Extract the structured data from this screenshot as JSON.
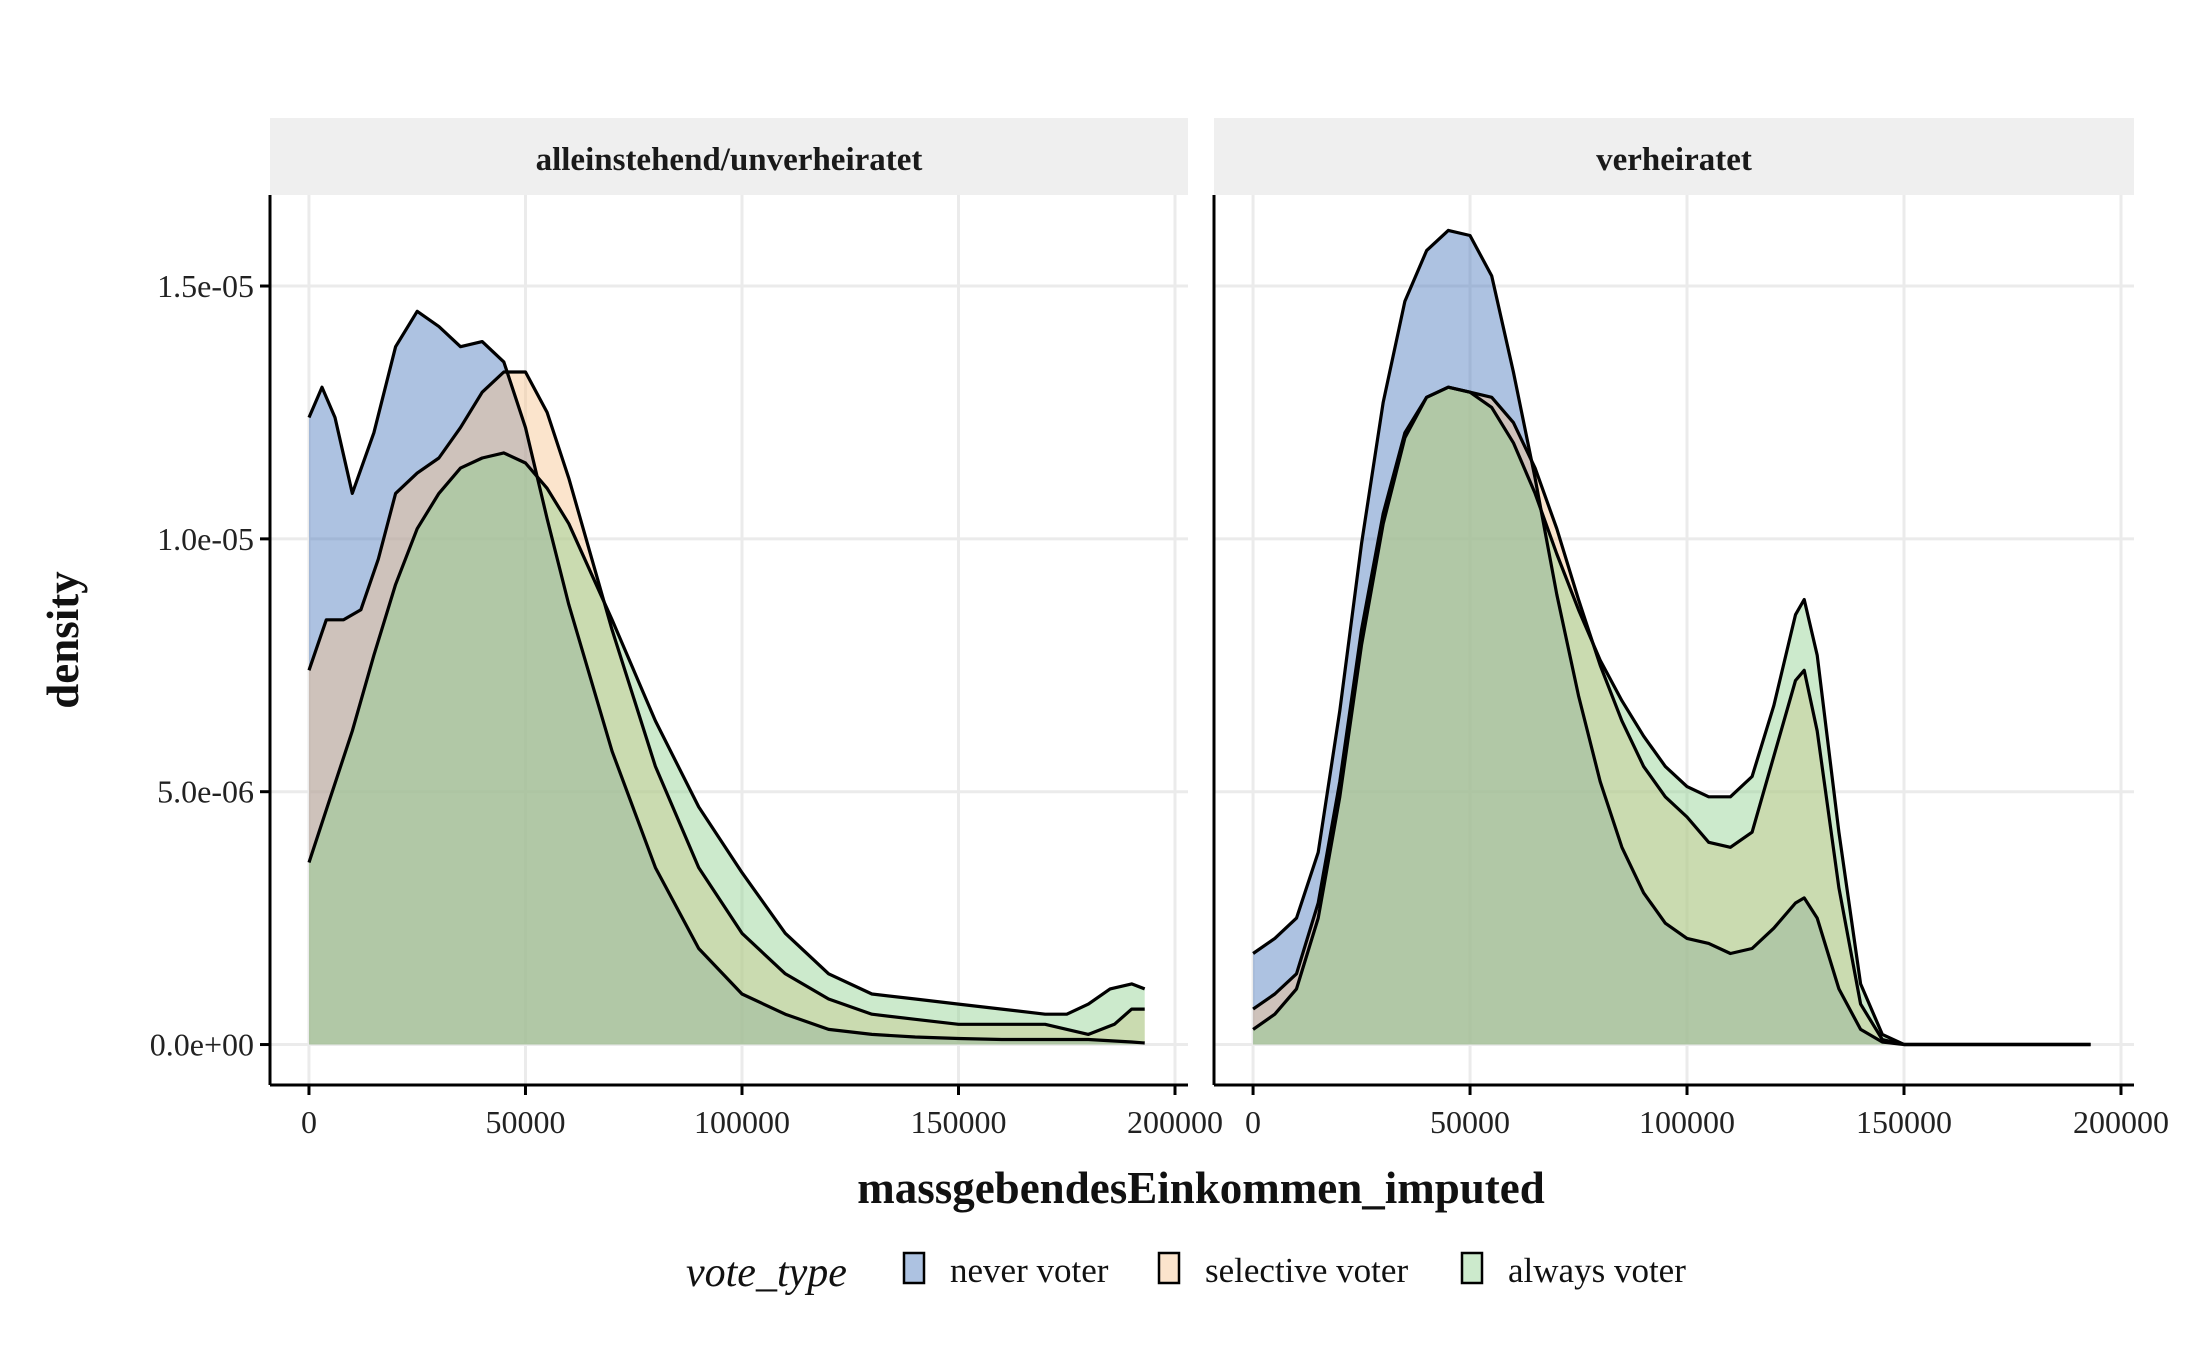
{
  "chart_data": {
    "type": "area",
    "subtype": "density",
    "xlabel": "massgebendesEinkommen_imputed",
    "ylabel": "density",
    "x_ticks": [
      "0",
      "50000",
      "100000",
      "150000",
      "200000"
    ],
    "x_tick_values": [
      0,
      50000,
      100000,
      150000,
      200000
    ],
    "y_ticks": [
      "0.0e+00",
      "5.0e-06",
      "1.0e-05",
      "1.5e-05"
    ],
    "y_tick_values": [
      0,
      5e-06,
      1e-05,
      1.5e-05
    ],
    "xlim": [
      -9000,
      203000
    ],
    "ylim": [
      -8e-07,
      1.68e-05
    ],
    "grid": true,
    "legend": {
      "title": "vote_type",
      "position": "bottom",
      "items": [
        {
          "label": "never voter",
          "color": "#4a78bd"
        },
        {
          "label": "selective voter",
          "color": "#f7c38f"
        },
        {
          "label": "always voter",
          "color": "#8fd18f"
        }
      ]
    },
    "colors": {
      "fill_alpha": 0.45,
      "outline": "#000000",
      "strip_background": "#efefef",
      "grid": "#ebebeb"
    },
    "panels": [
      {
        "title": "alleinstehend/unverheiratet",
        "series": [
          {
            "name": "never voter",
            "x": [
              0,
              3000,
              6000,
              10000,
              15000,
              20000,
              25000,
              30000,
              35000,
              40000,
              45000,
              50000,
              55000,
              60000,
              70000,
              80000,
              90000,
              100000,
              110000,
              120000,
              130000,
              140000,
              150000,
              160000,
              170000,
              180000,
              190000,
              193000
            ],
            "y": [
              1.24e-05,
              1.3e-05,
              1.24e-05,
              1.09e-05,
              1.21e-05,
              1.38e-05,
              1.45e-05,
              1.42e-05,
              1.38e-05,
              1.39e-05,
              1.35e-05,
              1.22e-05,
              1.04e-05,
              8.7e-06,
              5.8e-06,
              3.5e-06,
              1.9e-06,
              1e-06,
              6e-07,
              3e-07,
              2e-07,
              1.5e-07,
              1.2e-07,
              1e-07,
              1e-07,
              1e-07,
              5e-08,
              3e-08
            ]
          },
          {
            "name": "selective voter",
            "x": [
              0,
              4000,
              8000,
              12000,
              16000,
              20000,
              25000,
              30000,
              35000,
              40000,
              45000,
              50000,
              55000,
              60000,
              70000,
              80000,
              90000,
              100000,
              110000,
              120000,
              130000,
              140000,
              150000,
              160000,
              170000,
              180000,
              186000,
              190000,
              193000
            ],
            "y": [
              7.4e-06,
              8.4e-06,
              8.4e-06,
              8.6e-06,
              9.6e-06,
              1.09e-05,
              1.13e-05,
              1.16e-05,
              1.22e-05,
              1.29e-05,
              1.33e-05,
              1.33e-05,
              1.25e-05,
              1.12e-05,
              8.2e-06,
              5.5e-06,
              3.5e-06,
              2.2e-06,
              1.4e-06,
              9e-07,
              6e-07,
              5e-07,
              4e-07,
              4e-07,
              4e-07,
              2e-07,
              4e-07,
              7e-07,
              7e-07
            ]
          },
          {
            "name": "always voter",
            "x": [
              0,
              5000,
              10000,
              15000,
              20000,
              25000,
              30000,
              35000,
              40000,
              45000,
              50000,
              55000,
              60000,
              70000,
              80000,
              90000,
              100000,
              110000,
              120000,
              130000,
              140000,
              150000,
              160000,
              170000,
              175000,
              180000,
              185000,
              190000,
              193000
            ],
            "y": [
              3.6e-06,
              4.9e-06,
              6.2e-06,
              7.7e-06,
              9.1e-06,
              1.02e-05,
              1.09e-05,
              1.14e-05,
              1.16e-05,
              1.17e-05,
              1.15e-05,
              1.1e-05,
              1.03e-05,
              8.4e-06,
              6.4e-06,
              4.7e-06,
              3.4e-06,
              2.2e-06,
              1.4e-06,
              1e-06,
              9e-07,
              8e-07,
              7e-07,
              6e-07,
              6e-07,
              8e-07,
              1.1e-06,
              1.2e-06,
              1.1e-06
            ]
          }
        ]
      },
      {
        "title": "verheiratet",
        "series": [
          {
            "name": "never voter",
            "x": [
              0,
              5000,
              10000,
              15000,
              20000,
              25000,
              30000,
              35000,
              40000,
              45000,
              50000,
              55000,
              60000,
              65000,
              70000,
              75000,
              80000,
              85000,
              90000,
              95000,
              100000,
              105000,
              110000,
              115000,
              120000,
              125000,
              127000,
              130000,
              135000,
              140000,
              145000,
              150000,
              160000,
              170000,
              180000,
              193000
            ],
            "y": [
              1.8e-06,
              2.1e-06,
              2.5e-06,
              3.8e-06,
              6.6e-06,
              9.9e-06,
              1.27e-05,
              1.47e-05,
              1.57e-05,
              1.61e-05,
              1.6e-05,
              1.52e-05,
              1.33e-05,
              1.12e-05,
              8.9e-06,
              6.9e-06,
              5.2e-06,
              3.9e-06,
              3e-06,
              2.4e-06,
              2.1e-06,
              2e-06,
              1.8e-06,
              1.9e-06,
              2.3e-06,
              2.8e-06,
              2.9e-06,
              2.5e-06,
              1.1e-06,
              3e-07,
              5e-08,
              0,
              0,
              0,
              0,
              0
            ]
          },
          {
            "name": "selective voter",
            "x": [
              0,
              5000,
              10000,
              15000,
              20000,
              25000,
              30000,
              35000,
              40000,
              45000,
              50000,
              55000,
              60000,
              65000,
              70000,
              75000,
              80000,
              85000,
              90000,
              95000,
              100000,
              105000,
              110000,
              115000,
              120000,
              125000,
              127000,
              130000,
              135000,
              140000,
              145000,
              150000,
              160000,
              170000,
              180000,
              193000
            ],
            "y": [
              7e-07,
              1e-06,
              1.4e-06,
              2.8e-06,
              5.2e-06,
              8.2e-06,
              1.05e-05,
              1.21e-05,
              1.28e-05,
              1.3e-05,
              1.29e-05,
              1.28e-05,
              1.23e-05,
              1.14e-05,
              1.02e-05,
              8.8e-06,
              7.5e-06,
              6.4e-06,
              5.5e-06,
              4.9e-06,
              4.5e-06,
              4e-06,
              3.9e-06,
              4.2e-06,
              5.7e-06,
              7.2e-06,
              7.4e-06,
              6.2e-06,
              3.1e-06,
              8e-07,
              1e-07,
              0,
              0,
              0,
              0,
              0
            ]
          },
          {
            "name": "always voter",
            "x": [
              0,
              5000,
              10000,
              15000,
              20000,
              25000,
              30000,
              35000,
              40000,
              45000,
              50000,
              55000,
              60000,
              65000,
              70000,
              75000,
              80000,
              85000,
              90000,
              95000,
              100000,
              105000,
              110000,
              115000,
              120000,
              125000,
              127000,
              130000,
              135000,
              140000,
              145000,
              150000,
              160000,
              170000,
              180000,
              193000
            ],
            "y": [
              3e-07,
              6e-07,
              1.1e-06,
              2.5e-06,
              4.9e-06,
              7.9e-06,
              1.03e-05,
              1.2e-05,
              1.28e-05,
              1.3e-05,
              1.29e-05,
              1.26e-05,
              1.19e-05,
              1.09e-05,
              9.7e-06,
              8.6e-06,
              7.6e-06,
              6.8e-06,
              6.1e-06,
              5.5e-06,
              5.1e-06,
              4.9e-06,
              4.9e-06,
              5.3e-06,
              6.7e-06,
              8.5e-06,
              8.8e-06,
              7.7e-06,
              4.2e-06,
              1.2e-06,
              2e-07,
              0,
              0,
              0,
              0,
              0
            ]
          }
        ]
      }
    ]
  }
}
